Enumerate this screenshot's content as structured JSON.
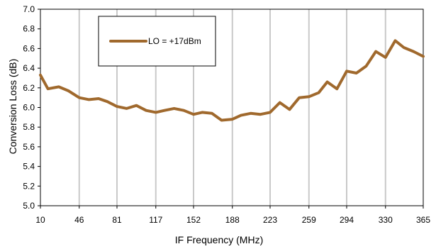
{
  "chart_data": {
    "type": "line",
    "title": "",
    "xlabel": "IF Frequency (MHz)",
    "ylabel": "Conversion Loss (dB)",
    "xlim": [
      10,
      365
    ],
    "ylim": [
      5.0,
      7.0
    ],
    "x_ticks": [
      10,
      46,
      81,
      117,
      152,
      188,
      223,
      259,
      294,
      330,
      365
    ],
    "x_tick_labels": [
      "10",
      "46",
      "81",
      "117",
      "152",
      "188",
      "223",
      "259",
      "294",
      "330",
      "365"
    ],
    "y_ticks": [
      5.0,
      5.2,
      5.4,
      5.6,
      5.8,
      6.0,
      6.2,
      6.4,
      6.6,
      6.8,
      7.0
    ],
    "y_tick_labels": [
      "5.0",
      "5.2",
      "5.4",
      "5.6",
      "5.8",
      "6.0",
      "6.2",
      "6.4",
      "6.6",
      "6.8",
      "7.0"
    ],
    "grid": "vertical",
    "legend_position": "top-left",
    "series": [
      {
        "name": "LO = +17dBm",
        "color": "#A0692D",
        "x": [
          10,
          17,
          27,
          36,
          46,
          55,
          64,
          72,
          81,
          90,
          99,
          108,
          117,
          125,
          134,
          143,
          152,
          160,
          169,
          178,
          188,
          196,
          205,
          214,
          223,
          232,
          241,
          250,
          259,
          268,
          276,
          285,
          294,
          303,
          312,
          321,
          330,
          339,
          347,
          356,
          365
        ],
        "values": [
          6.33,
          6.19,
          6.21,
          6.17,
          6.1,
          6.08,
          6.09,
          6.06,
          6.01,
          5.99,
          6.02,
          5.97,
          5.95,
          5.97,
          5.99,
          5.97,
          5.93,
          5.95,
          5.94,
          5.87,
          5.88,
          5.92,
          5.94,
          5.93,
          5.95,
          6.05,
          5.98,
          6.1,
          6.11,
          6.15,
          6.26,
          6.19,
          6.37,
          6.35,
          6.42,
          6.57,
          6.51,
          6.68,
          6.61,
          6.57,
          6.52
        ]
      }
    ]
  }
}
